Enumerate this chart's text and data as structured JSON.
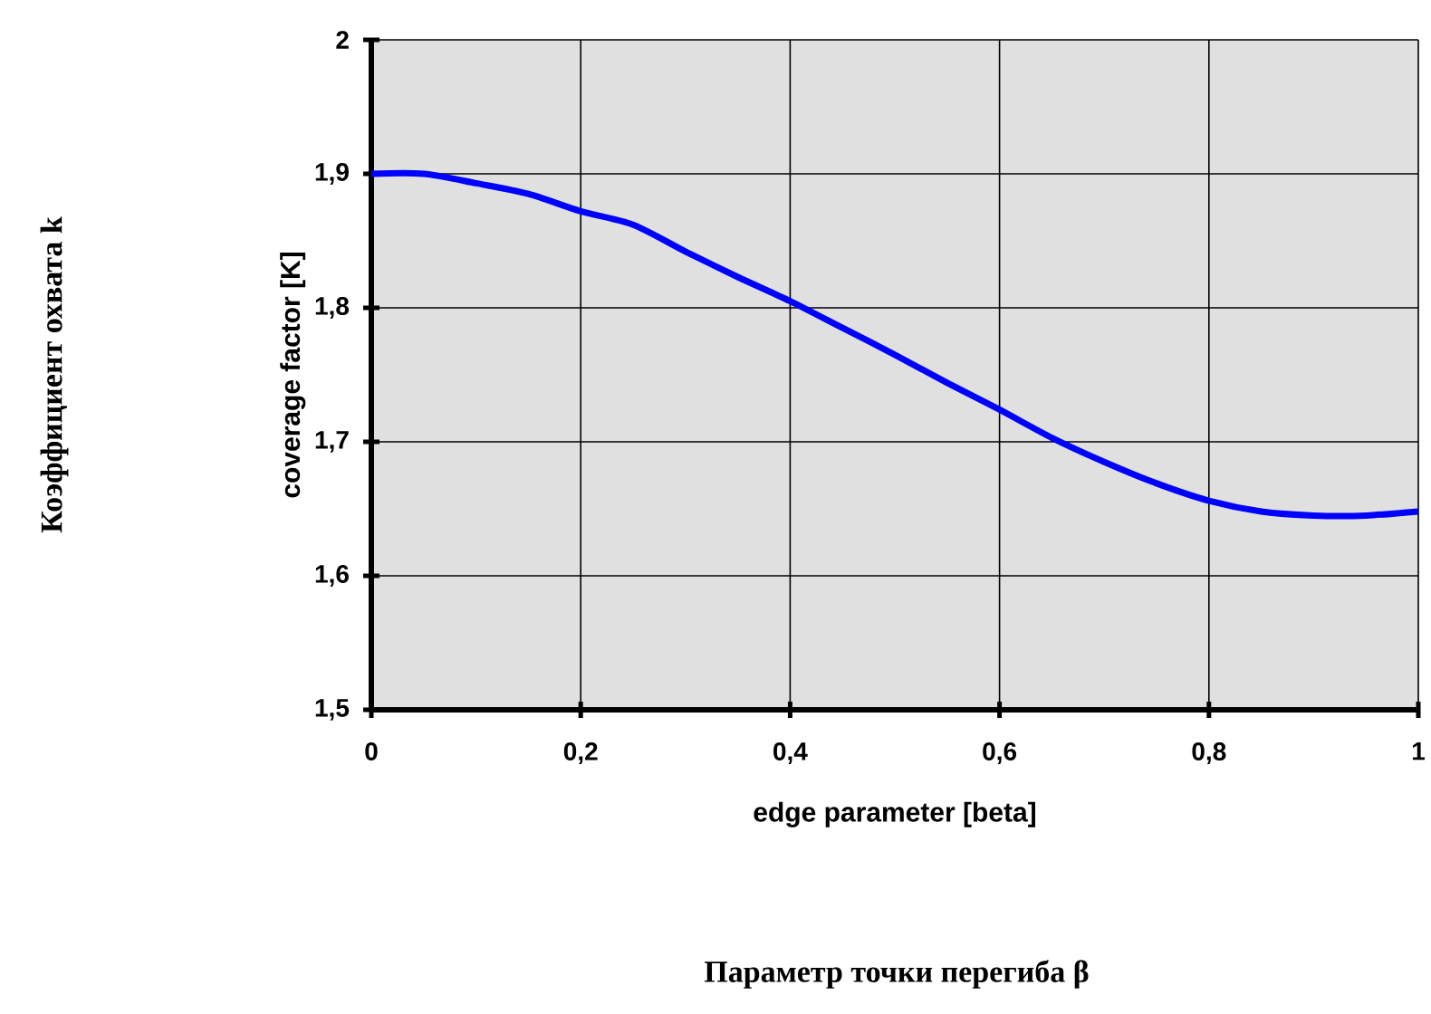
{
  "chart_data": {
    "type": "line",
    "xlabel": "edge parameter [beta]",
    "ylabel": "coverage factor [K]",
    "annotations": [
      "Коэффициент охвата k",
      "Параметр точки перегиба β"
    ],
    "x": [
      0,
      0.05,
      0.1,
      0.15,
      0.2,
      0.25,
      0.3,
      0.35,
      0.4,
      0.45,
      0.5,
      0.55,
      0.6,
      0.65,
      0.7,
      0.75,
      0.8,
      0.85,
      0.9,
      0.95,
      1.0
    ],
    "series": [
      {
        "color": "#0000ff",
        "values": [
          1.9,
          1.9,
          1.893,
          1.885,
          1.872,
          1.862,
          1.842,
          1.823,
          1.805,
          1.785,
          1.765,
          1.744,
          1.724,
          1.703,
          1.685,
          1.669,
          1.656,
          1.648,
          1.645,
          1.645,
          1.648
        ]
      }
    ],
    "xlim": [
      0,
      1
    ],
    "ylim": [
      1.5,
      2
    ],
    "xticks": [
      0,
      {
        "value": 0.2,
        "label": "0,2"
      },
      {
        "value": 0.4,
        "label": "0,4"
      },
      {
        "value": 0.6,
        "label": "0,6"
      },
      {
        "value": 0.8,
        "label": "0,8"
      },
      1
    ],
    "yticks": [
      {
        "value": 1.5,
        "label": "1,5"
      },
      {
        "value": 1.6,
        "label": "1,6"
      },
      {
        "value": 1.7,
        "label": "1,7"
      },
      {
        "value": 1.8,
        "label": "1,8"
      },
      {
        "value": 1.9,
        "label": "1,9"
      },
      2
    ],
    "grid": true,
    "marker": "none",
    "line_style": "solid"
  }
}
